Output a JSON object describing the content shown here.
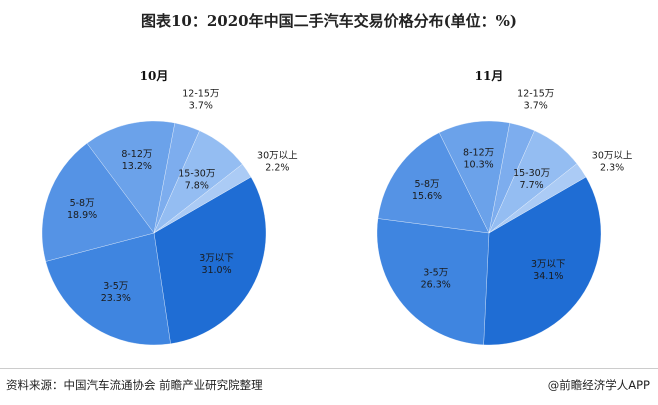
{
  "title": "图表10：2020年中国二手汽车交易价格分布(单位：%)",
  "footer": {
    "source": "资料来源：中国汽车流通协会 前瞻产业研究院整理",
    "brand": "@前瞻经济学人APP"
  },
  "watermark": "前瞻产业研究院",
  "chart_data": [
    {
      "type": "pie",
      "title": "10月",
      "categories": [
        "3万以下",
        "3-5万",
        "5-8万",
        "8-12万",
        "12-15万",
        "15-30万",
        "30万以上"
      ],
      "values": [
        31.0,
        23.3,
        18.9,
        13.2,
        3.7,
        7.8,
        2.2
      ],
      "labels": [
        "31.0%",
        "23.3%",
        "18.9%",
        "13.2%",
        "3.7%",
        "7.8%",
        "2.2%"
      ],
      "colors": [
        "#1f6dd4",
        "#3f85e0",
        "#5593e5",
        "#6ba2ea",
        "#7dadee",
        "#94bdf2",
        "#abcbf5"
      ]
    },
    {
      "type": "pie",
      "title": "11月",
      "categories": [
        "3万以下",
        "3-5万",
        "5-8万",
        "8-12万",
        "12-15万",
        "15-30万",
        "30万以上"
      ],
      "values": [
        34.1,
        26.3,
        15.6,
        10.3,
        3.7,
        7.7,
        2.3
      ],
      "labels": [
        "34.1%",
        "26.3%",
        "15.6%",
        "10.3%",
        "3.7%",
        "7.7%",
        "2.3%"
      ],
      "colors": [
        "#1f6dd4",
        "#3f85e0",
        "#5593e5",
        "#6ba2ea",
        "#7dadee",
        "#94bdf2",
        "#abcbf5"
      ]
    }
  ]
}
